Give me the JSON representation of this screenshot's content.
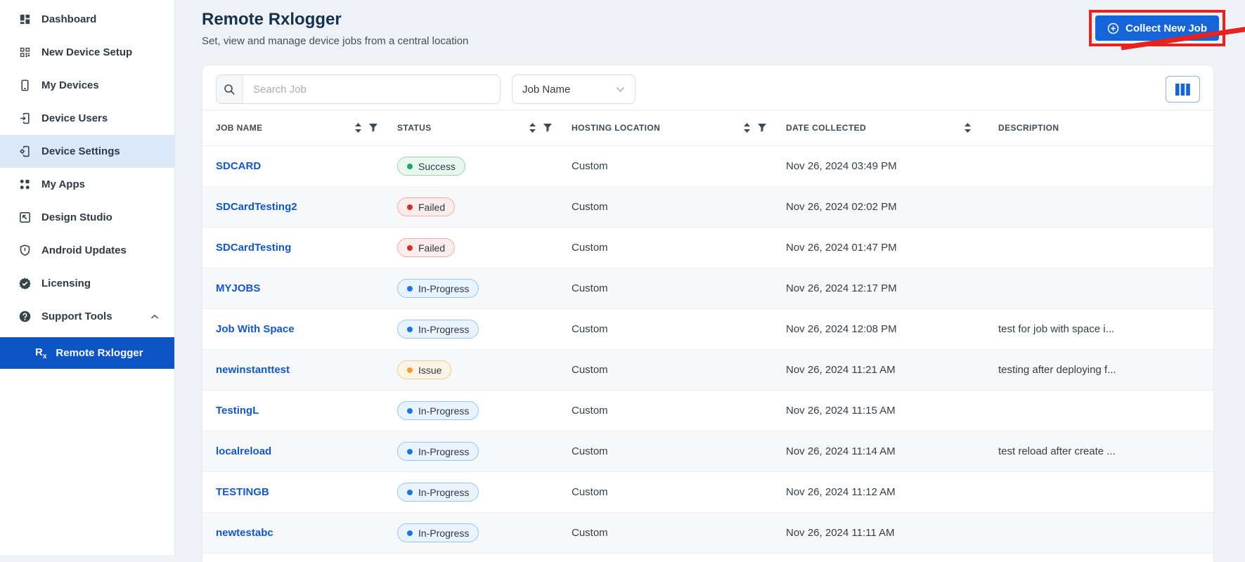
{
  "sidebar": {
    "items": [
      {
        "label": "Dashboard",
        "icon": "dashboard-icon"
      },
      {
        "label": "New Device Setup",
        "icon": "qr-code-icon"
      },
      {
        "label": "My Devices",
        "icon": "smartphone-icon"
      },
      {
        "label": "Device Users",
        "icon": "device-user-icon"
      },
      {
        "label": "Device Settings",
        "icon": "device-settings-icon",
        "state": "highlighted"
      },
      {
        "label": "My Apps",
        "icon": "apps-icon"
      },
      {
        "label": "Design Studio",
        "icon": "design-studio-icon"
      },
      {
        "label": "Android Updates",
        "icon": "shield-icon"
      },
      {
        "label": "Licensing",
        "icon": "license-badge-icon"
      },
      {
        "label": "Support Tools",
        "icon": "help-circle-icon",
        "expanded": true
      }
    ],
    "sub_item": {
      "label": "Remote Rxlogger",
      "icon": "rx-icon",
      "state": "selected"
    }
  },
  "header": {
    "title": "Remote Rxlogger",
    "subtitle": "Set, view and manage device jobs from a central location",
    "collect_button": {
      "label": "Collect New Job",
      "icon": "plus-circle-icon"
    }
  },
  "toolbar": {
    "search_placeholder": "Search Job",
    "filter_dropdown_value": "Job Name",
    "columns_button_icon": "columns-icon"
  },
  "table": {
    "columns": [
      {
        "label": "JOB NAME",
        "sortable": true,
        "filterable": true
      },
      {
        "label": "STATUS",
        "sortable": true,
        "filterable": true
      },
      {
        "label": "HOSTING LOCATION",
        "sortable": true,
        "filterable": true
      },
      {
        "label": "DATE COLLECTED",
        "sortable": true,
        "filterable": false
      },
      {
        "label": "DESCRIPTION",
        "sortable": false,
        "filterable": false
      }
    ],
    "rows": [
      {
        "job_name": "SDCARD",
        "status": "Success",
        "hosting_location": "Custom",
        "date_collected": "Nov 26, 2024 03:49 PM",
        "description": ""
      },
      {
        "job_name": "SDCardTesting2",
        "status": "Failed",
        "hosting_location": "Custom",
        "date_collected": "Nov 26, 2024 02:02 PM",
        "description": ""
      },
      {
        "job_name": "SDCardTesting",
        "status": "Failed",
        "hosting_location": "Custom",
        "date_collected": "Nov 26, 2024 01:47 PM",
        "description": ""
      },
      {
        "job_name": "MYJOBS",
        "status": "In-Progress",
        "hosting_location": "Custom",
        "date_collected": "Nov 26, 2024 12:17 PM",
        "description": ""
      },
      {
        "job_name": "Job With Space",
        "status": "In-Progress",
        "hosting_location": "Custom",
        "date_collected": "Nov 26, 2024 12:08 PM",
        "description": "test for job with space i..."
      },
      {
        "job_name": "newinstanttest",
        "status": "Issue",
        "hosting_location": "Custom",
        "date_collected": "Nov 26, 2024 11:21 AM",
        "description": "testing after deploying f..."
      },
      {
        "job_name": "TestingL",
        "status": "In-Progress",
        "hosting_location": "Custom",
        "date_collected": "Nov 26, 2024 11:15 AM",
        "description": ""
      },
      {
        "job_name": "localreload",
        "status": "In-Progress",
        "hosting_location": "Custom",
        "date_collected": "Nov 26, 2024 11:14 AM",
        "description": "test reload after create ..."
      },
      {
        "job_name": "TESTINGB",
        "status": "In-Progress",
        "hosting_location": "Custom",
        "date_collected": "Nov 26, 2024 11:12 AM",
        "description": ""
      },
      {
        "job_name": "newtestabc",
        "status": "In-Progress",
        "hosting_location": "Custom",
        "date_collected": "Nov 26, 2024 11:11 AM",
        "description": ""
      }
    ]
  },
  "status_colors": {
    "Success": {
      "bg": "#e9f8ef",
      "border": "#8ed9ad",
      "dot": "#1fa75c"
    },
    "Failed": {
      "bg": "#fdecec",
      "border": "#f2abab",
      "dot": "#dd2c2c"
    },
    "In-Progress": {
      "bg": "#e9f3fd",
      "border": "#96c5f2",
      "dot": "#1b76e0"
    },
    "Issue": {
      "bg": "#fdf4e6",
      "border": "#efc99b",
      "dot": "#f49f2f"
    }
  },
  "colors": {
    "accent_blue": "#1565d8",
    "sidebar_selected_blue": "#0d55c5",
    "sidebar_highlight": "#dbe8f8",
    "annotation_red": "#e8231f",
    "link_blue": "#1356c5"
  },
  "annotation": {
    "type": "red box with arrow pointing at Collect New Job button"
  }
}
